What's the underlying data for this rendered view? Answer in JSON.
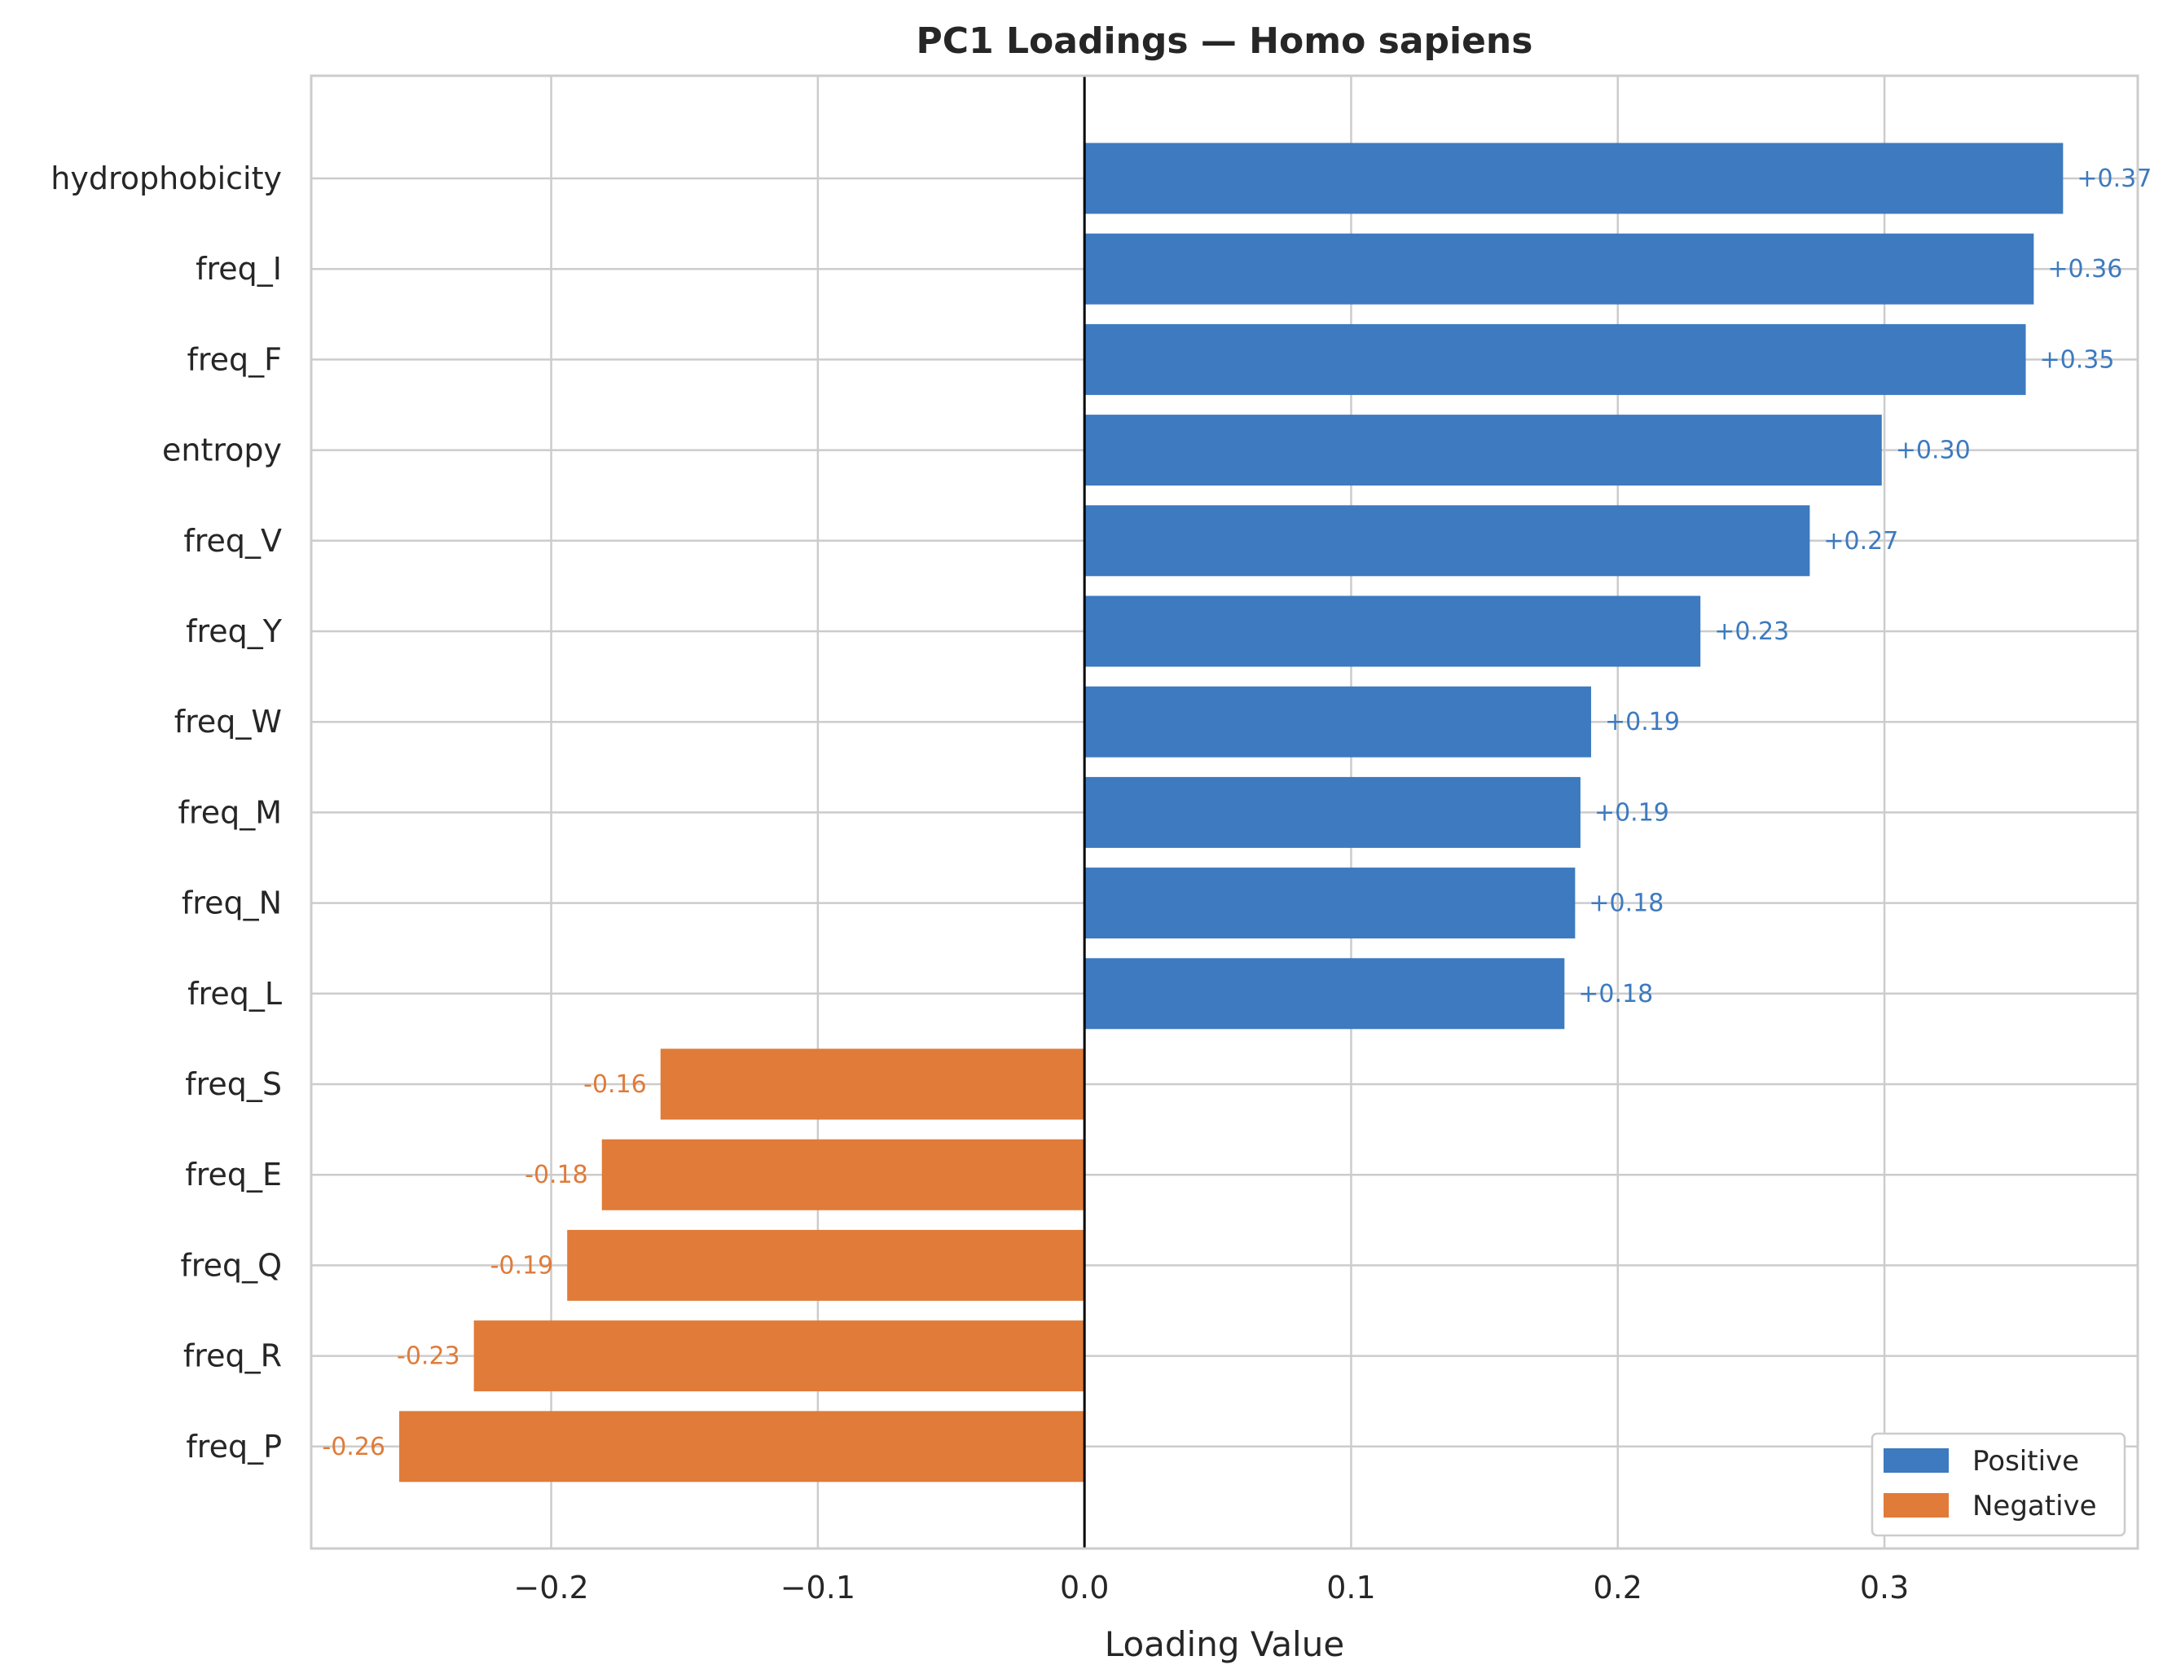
{
  "chart_data": {
    "type": "bar",
    "orientation": "horizontal",
    "title": "PC1 Loadings — Homo sapiens",
    "xlabel": "Loading Value",
    "ylabel": "",
    "xlim": [
      -0.29,
      0.395
    ],
    "xticks": [
      -0.2,
      -0.1,
      0.0,
      0.1,
      0.2,
      0.3
    ],
    "xtick_labels": [
      "−0.2",
      "−0.1",
      "0.0",
      "0.1",
      "0.2",
      "0.3"
    ],
    "grid": true,
    "zero_line": true,
    "categories": [
      "hydrophobicity",
      "freq_I",
      "freq_F",
      "entropy",
      "freq_V",
      "freq_Y",
      "freq_W",
      "freq_M",
      "freq_N",
      "freq_L",
      "freq_S",
      "freq_E",
      "freq_Q",
      "freq_R",
      "freq_P"
    ],
    "values": [
      0.367,
      0.356,
      0.353,
      0.299,
      0.272,
      0.231,
      0.19,
      0.186,
      0.184,
      0.18,
      -0.159,
      -0.181,
      -0.194,
      -0.229,
      -0.257
    ],
    "value_labels": [
      "+0.37",
      "+0.36",
      "+0.35",
      "+0.30",
      "+0.27",
      "+0.23",
      "+0.19",
      "+0.19",
      "+0.18",
      "+0.18",
      "-0.16",
      "-0.18",
      "-0.19",
      "-0.23",
      "-0.26"
    ],
    "colors": {
      "positive": "#3d7abf",
      "negative": "#e07b39"
    },
    "legend": {
      "placement": "lower-right",
      "entries": [
        {
          "label": "Positive",
          "color": "#3d7abf"
        },
        {
          "label": "Negative",
          "color": "#e07b39"
        }
      ]
    }
  }
}
